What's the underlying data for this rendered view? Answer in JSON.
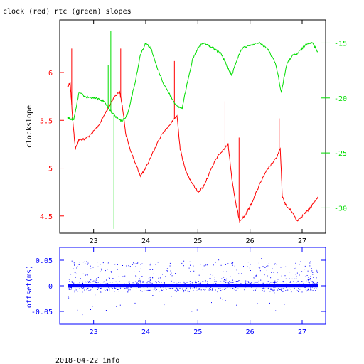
{
  "title": "clock (red) rtc (green) slopes",
  "footer": "2018-04-22 info",
  "colors": {
    "clock": "#ff0000",
    "rtc": "#00dd00",
    "offset": "#0000ff",
    "axis": "#000000"
  },
  "chart_data": [
    {
      "type": "line",
      "title": "clock (red) rtc (green) slopes",
      "ylabel": "clockslope",
      "xlim": [
        22.35,
        27.45
      ],
      "ylim": [
        4.32,
        6.55
      ],
      "y2lim": [
        -32.3,
        -12.9
      ],
      "x_ticks": [
        23,
        24,
        25,
        26,
        27
      ],
      "y_ticks": [
        4.5,
        5,
        5.5,
        6
      ],
      "y2_ticks": [
        -30,
        -25,
        -20,
        -15
      ],
      "grid": false,
      "series": [
        {
          "name": "clock",
          "axis": "left",
          "x": [
            22.5,
            22.55,
            22.6,
            22.65,
            22.72,
            22.82,
            22.95,
            23.1,
            23.25,
            23.4,
            23.5,
            23.55,
            23.62,
            23.7,
            23.8,
            23.9,
            24.0,
            24.1,
            24.3,
            24.5,
            24.6,
            24.66,
            24.75,
            24.85,
            25.0,
            25.1,
            25.2,
            25.35,
            25.5,
            25.58,
            25.65,
            25.72,
            25.8,
            25.9,
            26.0,
            26.1,
            26.2,
            26.35,
            26.5,
            26.58,
            26.62,
            26.7,
            26.8,
            26.9,
            27.0,
            27.1,
            27.2,
            27.3
          ],
          "y": [
            5.85,
            5.9,
            5.5,
            5.2,
            5.3,
            5.3,
            5.35,
            5.45,
            5.6,
            5.75,
            5.8,
            5.65,
            5.35,
            5.2,
            5.05,
            4.92,
            5.0,
            5.12,
            5.35,
            5.48,
            5.55,
            5.2,
            5.0,
            4.88,
            4.75,
            4.8,
            4.92,
            5.1,
            5.2,
            5.25,
            4.9,
            4.65,
            4.45,
            4.5,
            4.6,
            4.72,
            4.85,
            5.0,
            5.1,
            5.2,
            4.7,
            4.6,
            4.55,
            4.45,
            4.5,
            4.55,
            4.62,
            4.7
          ],
          "spikes": [
            [
              22.58,
              6.25
            ],
            [
              23.52,
              6.25
            ],
            [
              24.55,
              6.12
            ],
            [
              25.52,
              5.7
            ],
            [
              25.79,
              5.32
            ],
            [
              26.56,
              5.52
            ]
          ]
        },
        {
          "name": "rtc",
          "axis": "right",
          "x": [
            22.5,
            22.55,
            22.62,
            22.72,
            22.85,
            23.0,
            23.1,
            23.2,
            23.3,
            23.4,
            23.5,
            23.55,
            23.65,
            23.8,
            23.9,
            24.0,
            24.1,
            24.2,
            24.35,
            24.5,
            24.6,
            24.7,
            24.8,
            24.9,
            25.0,
            25.1,
            25.2,
            25.3,
            25.45,
            25.55,
            25.6,
            25.65,
            25.75,
            25.85,
            26.0,
            26.2,
            26.35,
            26.5,
            26.6,
            26.7,
            26.8,
            26.9,
            27.0,
            27.1,
            27.2,
            27.3
          ],
          "y": [
            -21.8,
            -21.9,
            -22.0,
            -19.5,
            -19.9,
            -20.0,
            -20.1,
            -20.3,
            -21.0,
            -21.6,
            -22.0,
            -22.1,
            -21.5,
            -18.5,
            -16.0,
            -15.0,
            -15.5,
            -17.0,
            -18.8,
            -20.0,
            -20.8,
            -20.9,
            -18.5,
            -16.5,
            -15.5,
            -15.0,
            -15.2,
            -15.5,
            -16.0,
            -17.0,
            -17.5,
            -18.0,
            -16.5,
            -15.5,
            -15.2,
            -15.0,
            -15.6,
            -17.0,
            -19.5,
            -17.0,
            -16.2,
            -16.0,
            -15.5,
            -15.0,
            -15.0,
            -15.8
          ],
          "spikes": [
            [
              23.33,
              -13.9
            ],
            [
              23.39,
              -31.9
            ],
            [
              23.28,
              -17.0
            ]
          ]
        }
      ]
    },
    {
      "type": "scatter",
      "ylabel": "offset(ms)",
      "xlim": [
        22.35,
        27.45
      ],
      "ylim": [
        -0.075,
        0.075
      ],
      "x_ticks": [
        23,
        24,
        25,
        26,
        27
      ],
      "y_ticks": [
        -0.05,
        0,
        0.05
      ],
      "grid": false,
      "series": [
        {
          "name": "offset",
          "x_range": [
            22.5,
            27.3
          ],
          "center": 0,
          "typical_spread": 0.005,
          "scatter_range": [
            -0.06,
            0.06
          ]
        }
      ]
    }
  ]
}
